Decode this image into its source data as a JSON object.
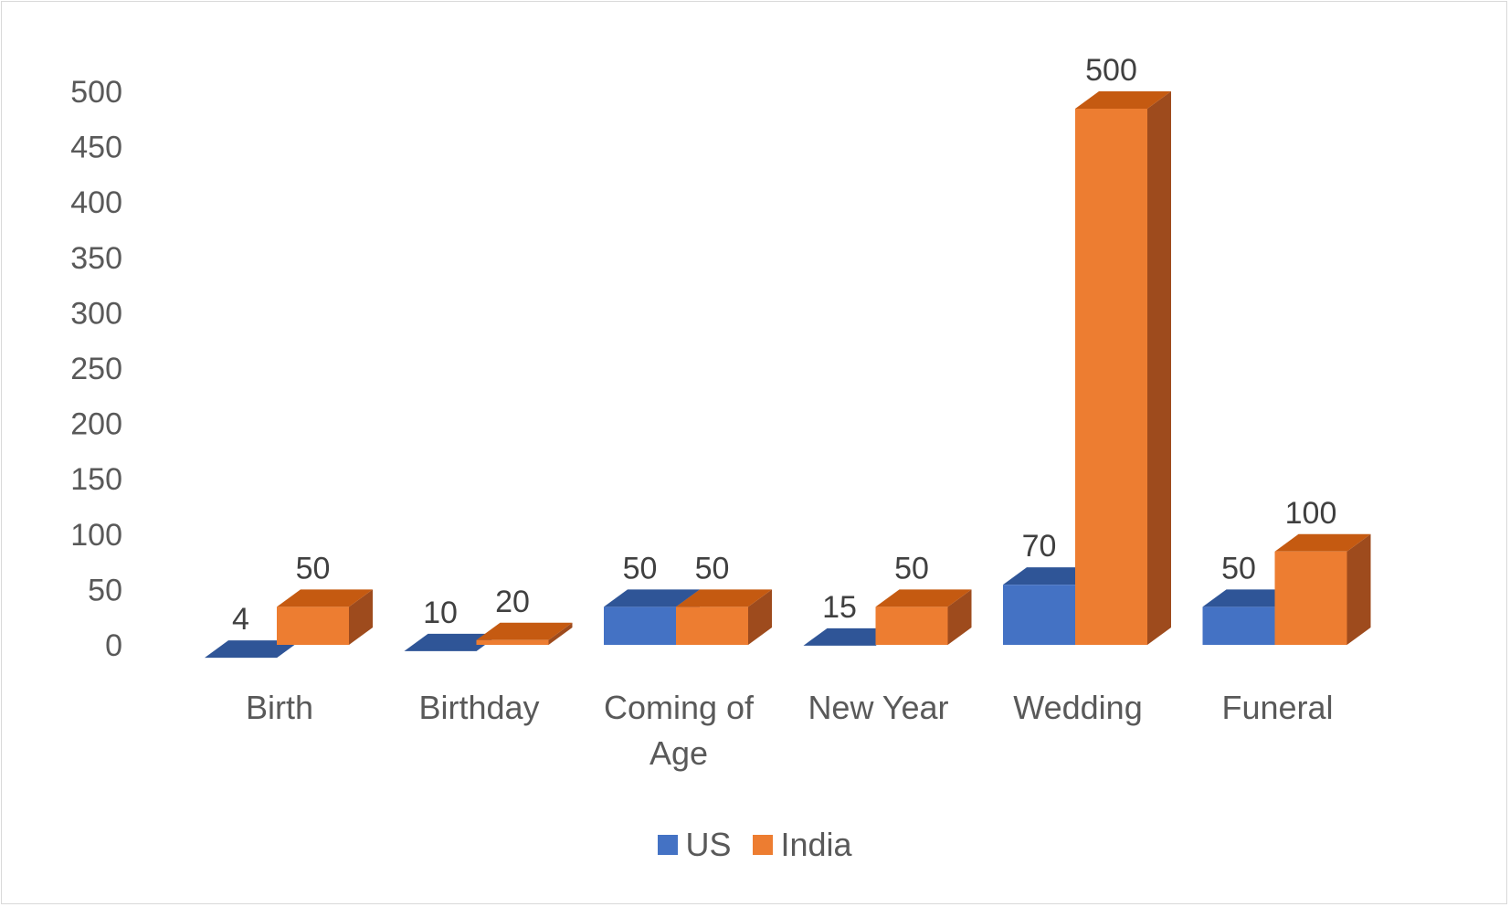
{
  "chart_data": {
    "type": "bar",
    "style": "3d-clustered-column",
    "title": "",
    "xlabel": "",
    "ylabel": "",
    "ylim": [
      0,
      500
    ],
    "yticks": [
      0,
      50,
      100,
      150,
      200,
      250,
      300,
      350,
      400,
      450,
      500
    ],
    "categories": [
      "Birth",
      "Birthday",
      "Coming of Age",
      "New Year",
      "Wedding",
      "Funeral"
    ],
    "category_lines": [
      [
        "Birth"
      ],
      [
        "Birthday"
      ],
      [
        "Coming of",
        "Age"
      ],
      [
        "New Year"
      ],
      [
        "Wedding"
      ],
      [
        "Funeral"
      ]
    ],
    "series": [
      {
        "name": "US",
        "values": [
          4,
          10,
          50,
          15,
          70,
          50
        ],
        "color": "#4472C4",
        "top_color": "#2F5597",
        "side_color": "#2F5597"
      },
      {
        "name": "India",
        "values": [
          50,
          20,
          50,
          50,
          500,
          100
        ],
        "color": "#ED7D31",
        "top_color": "#C55A11",
        "side_color": "#9E4B1D"
      }
    ],
    "data_labels": true,
    "grid": false,
    "legend_position": "bottom"
  }
}
